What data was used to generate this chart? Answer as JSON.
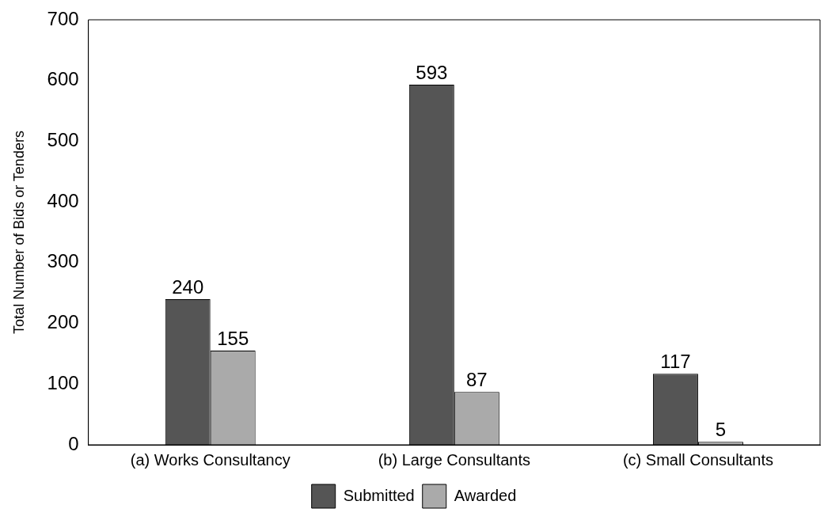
{
  "chart_data": {
    "type": "bar",
    "ylabel": "Total Number of Bids or Tenders",
    "categories": [
      "(a) Works Consultancy",
      "(b) Large Consultants",
      "(c) Small Consultants"
    ],
    "series": [
      {
        "name": "Submitted",
        "color": "#555555",
        "values": [
          240,
          593,
          117
        ]
      },
      {
        "name": "Awarded",
        "color": "#aaaaaa",
        "values": [
          155,
          87,
          5
        ]
      }
    ],
    "ylim": [
      0,
      700
    ],
    "yticks": [
      0,
      100,
      200,
      300,
      400,
      500,
      600,
      700
    ],
    "grid": false,
    "legend": "bottom",
    "data_labels": true
  }
}
